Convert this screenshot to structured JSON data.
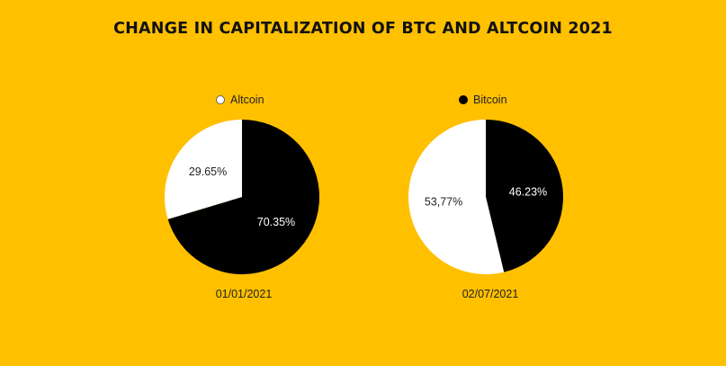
{
  "title": "CHANGE IN CAPITALIZATION OF BTC AND ALTCOIN 2021",
  "colors": {
    "background": "#FFC000",
    "altcoin": "#FFFFFF",
    "bitcoin": "#000000"
  },
  "chart_data": [
    {
      "type": "pie",
      "legend": [
        {
          "name": "Altcoin",
          "color": "#FFFFFF"
        }
      ],
      "date": "01/01/2021",
      "slices": [
        {
          "name": "Altcoin",
          "value": 29.65,
          "label": "29.65%",
          "color": "#FFFFFF"
        },
        {
          "name": "Bitcoin",
          "value": 70.35,
          "label": "70.35%",
          "color": "#000000"
        }
      ]
    },
    {
      "type": "pie",
      "legend": [
        {
          "name": "Bitcoin",
          "color": "#000000"
        }
      ],
      "date": "02/07/2021",
      "slices": [
        {
          "name": "Altcoin",
          "value": 53.77,
          "label": "53,77%",
          "color": "#FFFFFF"
        },
        {
          "name": "Bitcoin",
          "value": 46.23,
          "label": "46.23%",
          "color": "#000000"
        }
      ]
    }
  ]
}
